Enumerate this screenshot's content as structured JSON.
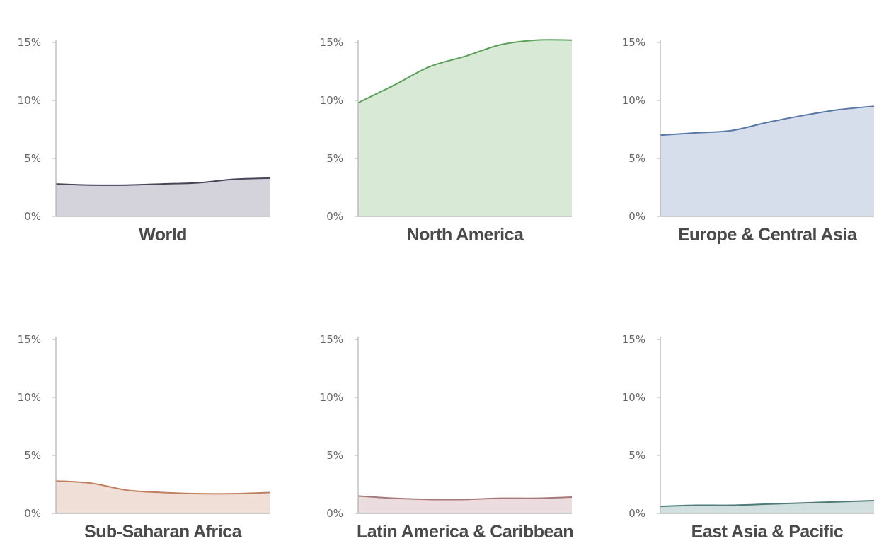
{
  "chart_data": [
    {
      "type": "area",
      "title": "World",
      "x": [
        0,
        1,
        2,
        3,
        4,
        5,
        6
      ],
      "values": [
        2.8,
        2.7,
        2.7,
        2.8,
        2.9,
        3.2,
        3.3
      ],
      "ylim": [
        0,
        15
      ],
      "yticks": [
        0,
        5,
        10,
        15
      ],
      "ytick_labels": [
        "0%",
        "5%",
        "10%",
        "15%"
      ],
      "color": "#4a4458",
      "fill": "#d4d2da"
    },
    {
      "type": "area",
      "title": "North America",
      "x": [
        0,
        1,
        2,
        3,
        4,
        5,
        6
      ],
      "values": [
        9.8,
        11.3,
        12.9,
        13.8,
        14.8,
        15.2,
        15.2
      ],
      "ylim": [
        0,
        15
      ],
      "yticks": [
        0,
        5,
        10,
        15
      ],
      "ytick_labels": [
        "0%",
        "5%",
        "10%",
        "15%"
      ],
      "color": "#5aa05a",
      "fill": "#d8ead6"
    },
    {
      "type": "area",
      "title": "Europe & Central Asia",
      "x": [
        0,
        1,
        2,
        3,
        4,
        5,
        6
      ],
      "values": [
        7.0,
        7.2,
        7.4,
        8.1,
        8.7,
        9.2,
        9.5
      ],
      "ylim": [
        0,
        15
      ],
      "yticks": [
        0,
        5,
        10,
        15
      ],
      "ytick_labels": [
        "0%",
        "5%",
        "10%",
        "15%"
      ],
      "color": "#5879a8",
      "fill": "#d6deeb"
    },
    {
      "type": "area",
      "title": "Sub-Saharan Africa",
      "x": [
        0,
        1,
        2,
        3,
        4,
        5,
        6
      ],
      "values": [
        2.8,
        2.6,
        2.0,
        1.8,
        1.7,
        1.7,
        1.8
      ],
      "ylim": [
        0,
        15
      ],
      "yticks": [
        0,
        5,
        10,
        15
      ],
      "ytick_labels": [
        "0%",
        "5%",
        "10%",
        "15%"
      ],
      "color": "#c08060",
      "fill": "#efdfd6"
    },
    {
      "type": "area",
      "title": "Latin America & Caribbean",
      "x": [
        0,
        1,
        2,
        3,
        4,
        5,
        6
      ],
      "values": [
        1.5,
        1.3,
        1.2,
        1.2,
        1.3,
        1.3,
        1.4
      ],
      "ylim": [
        0,
        15
      ],
      "yticks": [
        0,
        5,
        10,
        15
      ],
      "ytick_labels": [
        "0%",
        "5%",
        "10%",
        "15%"
      ],
      "color": "#a87878",
      "fill": "#eadcdf"
    },
    {
      "type": "area",
      "title": "East Asia & Pacific",
      "x": [
        0,
        1,
        2,
        3,
        4,
        5,
        6
      ],
      "values": [
        0.6,
        0.7,
        0.7,
        0.8,
        0.9,
        1.0,
        1.1
      ],
      "ylim": [
        0,
        15
      ],
      "yticks": [
        0,
        5,
        10,
        15
      ],
      "ytick_labels": [
        "0%",
        "5%",
        "10%",
        "15%"
      ],
      "color": "#4e7a78",
      "fill": "#d2dfdf"
    }
  ]
}
